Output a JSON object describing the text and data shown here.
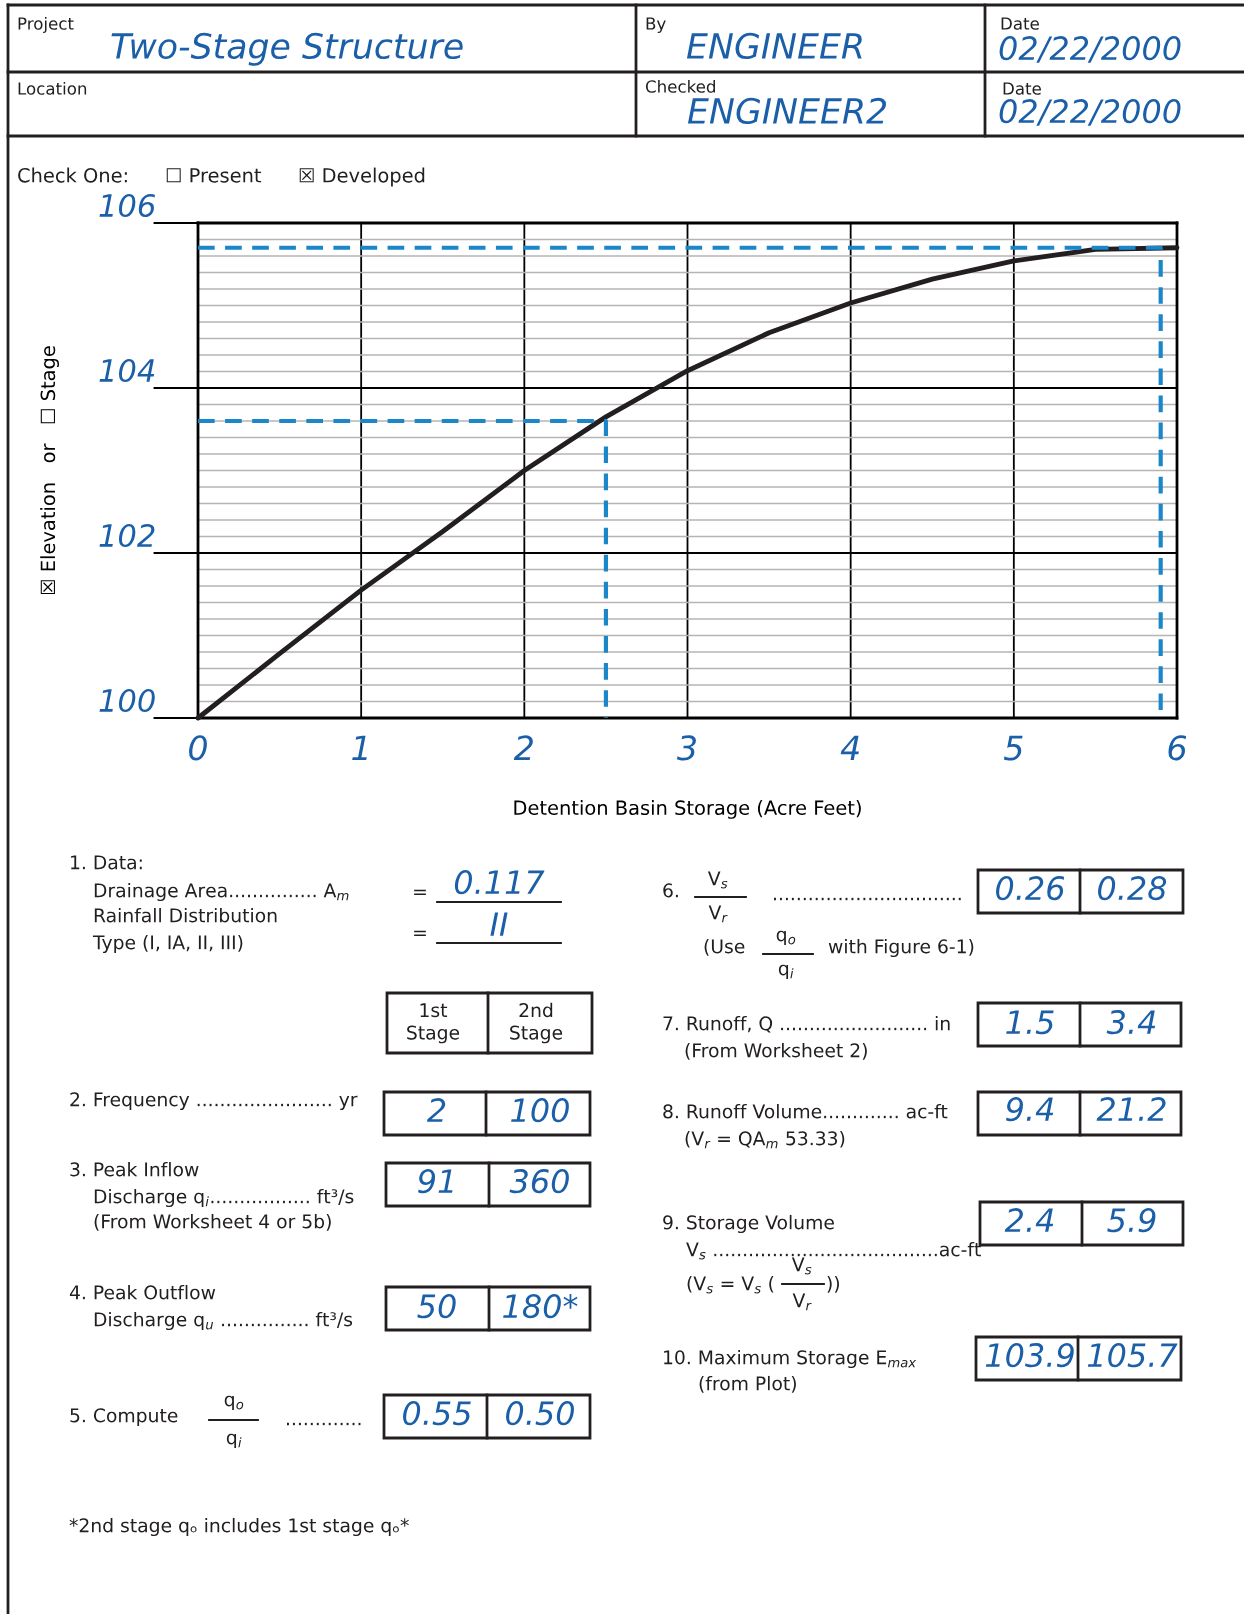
{
  "chart_data": {
    "type": "line",
    "title": "Two-Stage Structure",
    "xlabel": "Detention Basin Storage (Acre Feet)",
    "ylabel": "☒ Elevation   or   ☐ Stage",
    "xlim": [
      0,
      6
    ],
    "ylim": [
      100,
      106
    ],
    "xticks": [
      0,
      1,
      2,
      3,
      4,
      5,
      6
    ],
    "yticks": [
      100,
      {
        "value": 100.2,
        "label": null
      },
      {
        "value": 100.4,
        "label": null
      },
      {
        "value": 100.6,
        "label": null
      },
      {
        "value": 100.8,
        "label": null
      },
      {
        "value": 101,
        "label": null
      },
      {
        "value": 101.2,
        "label": null
      },
      {
        "value": 101.4,
        "label": null
      },
      {
        "value": 101.6,
        "label": null
      },
      {
        "value": 101.8,
        "label": null
      },
      102,
      {
        "value": 102.2,
        "label": null
      },
      {
        "value": 102.4,
        "label": null
      },
      {
        "value": 102.6,
        "label": null
      },
      {
        "value": 102.8,
        "label": null
      },
      {
        "value": 103,
        "label": null
      },
      {
        "value": 103.2,
        "label": null
      },
      {
        "value": 103.4,
        "label": null
      },
      {
        "value": 103.6,
        "label": null
      },
      {
        "value": 103.8,
        "label": null
      },
      104,
      {
        "value": 104.2,
        "label": null
      },
      {
        "value": 104.4,
        "label": null
      },
      {
        "value": 104.6,
        "label": null
      },
      {
        "value": 104.8,
        "label": null
      },
      {
        "value": 105,
        "label": null
      },
      {
        "value": 105.2,
        "label": null
      },
      {
        "value": 105.4,
        "label": null
      },
      {
        "value": 105.6,
        "label": null
      },
      {
        "value": 105.8,
        "label": null
      },
      106
    ],
    "grid": true,
    "series": [
      {
        "color": "#231f20",
        "line_style": "solid",
        "x": [
          0,
          0.5,
          1,
          1.5,
          2,
          2.5,
          3,
          3.5,
          4,
          4.5,
          5,
          5.5,
          6
        ],
        "values": [
          100,
          100.78,
          101.55,
          102.26,
          103.0,
          103.65,
          104.21,
          104.67,
          105.03,
          105.32,
          105.54,
          105.68,
          105.7
        ]
      },
      {
        "color": "#1b87c9",
        "line_style": "dashed",
        "x": [
          0,
          2.5,
          2.5
        ],
        "values": [
          103.6,
          103.6,
          100
        ]
      },
      {
        "color": "#1b87c9",
        "line_style": "dashed",
        "x": [
          0,
          5.9,
          5.9
        ],
        "values": [
          105.7,
          105.7,
          100
        ]
      }
    ],
    "annotations": [
      "Project",
      "By",
      "ENGINEER",
      "Date",
      "02/22/2000",
      "Location",
      "Checked",
      "ENGINEER2",
      "Date",
      "02/22/2000",
      "Check One:",
      "☐ Present",
      "☒ Developed",
      "1. Data:",
      "Drainage Area............... A$_{m}$",
      "Rainfall Distribution",
      "Type (I, IA, II, III)",
      "=",
      "0.117",
      "=",
      "II",
      "1st\nStage",
      "2nd\nStage",
      "2. Frequency ....................... yr",
      "2",
      "100",
      "3. Peak Inflow",
      "Discharge q$_{i}$................. ft³/s",
      "(From Worksheet 4 or 5b)",
      "91",
      "360",
      "4. Peak Outflow",
      "Discharge q$_{u}$ ............... ft³/s",
      "50",
      "180*",
      "5. Compute",
      "q$_{o}$",
      "q$_{i}$",
      ".............",
      "0.55",
      "0.50",
      "*2nd stage qₒ includes 1st stage qₒ*",
      "6.",
      "V$_{s}$",
      "V$_{r}$",
      "................................",
      "0.26",
      "0.28",
      "(Use",
      "q$_{o}$",
      "q$_{i}$",
      "with Figure 6-1)",
      "7. Runoff, Q ......................... in",
      "(From Worksheet 2)",
      "1.5",
      "3.4",
      "8. Runoff Volume............. ac-ft",
      "(V$_{r}$ = QA$_{m}$ 53.33)",
      "9.4",
      "21.2",
      "9. Storage Volume",
      "V$_{s}$ ......................................ac-ft",
      "(V$_{s}$ = V$_{s}$ (",
      "V$_{s}$",
      "V$_{r}$",
      "))",
      "2.4",
      "5.9",
      "10. Maximum Storage E$_{max}$",
      "(from Plot)",
      "103.9",
      "105.7"
    ]
  }
}
